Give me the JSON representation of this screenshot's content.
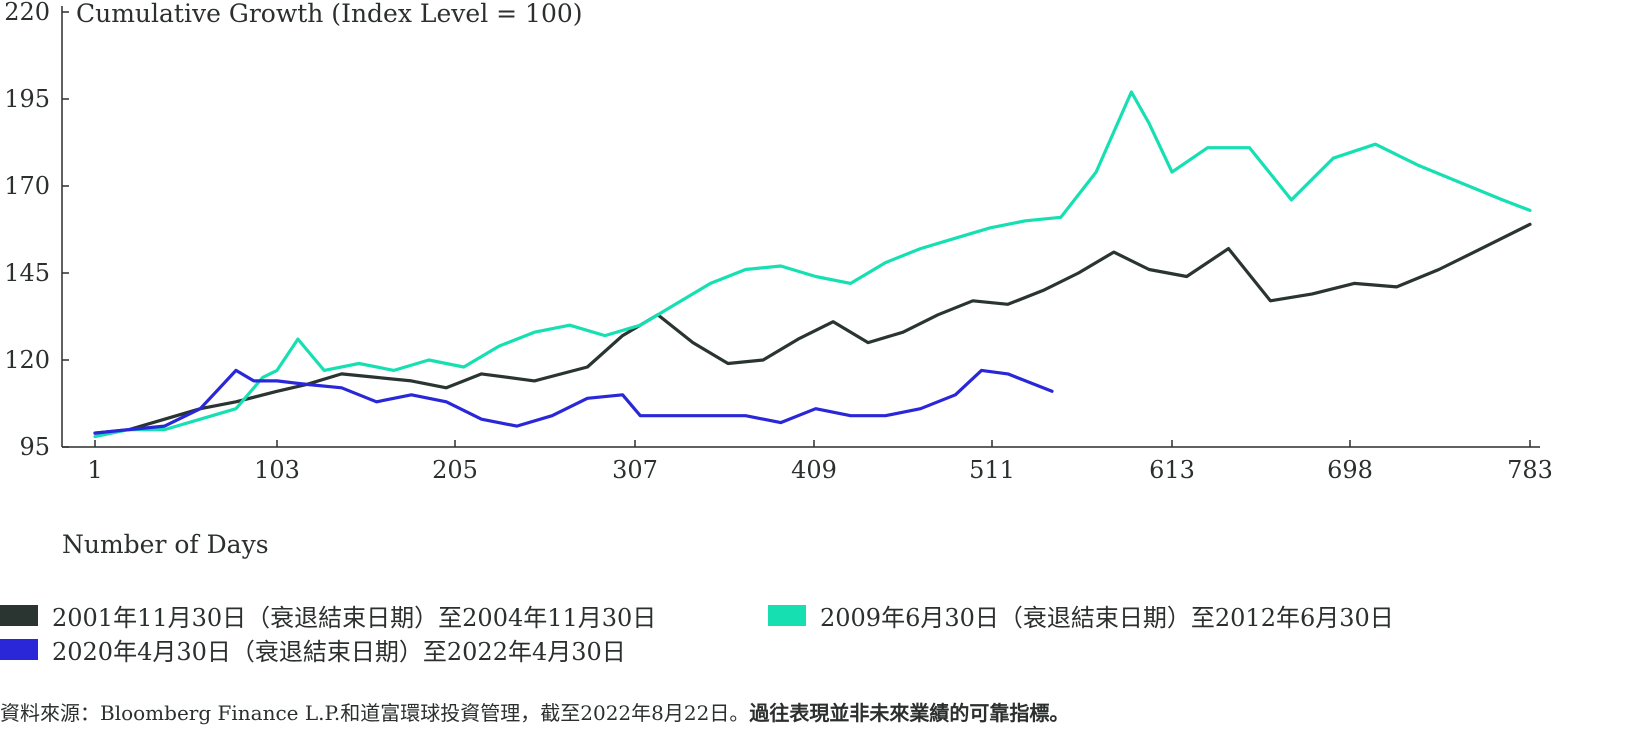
{
  "chart_data": {
    "type": "line",
    "title": "Cumulative Growth (Index Level = 100)",
    "xlabel": "Number of Days",
    "ylabel": "",
    "xlim": [
      1,
      783
    ],
    "ylim": [
      95,
      220
    ],
    "x_ticks": [
      1,
      103,
      205,
      307,
      409,
      511,
      613,
      698,
      783
    ],
    "y_ticks": [
      95,
      120,
      145,
      170,
      195,
      220
    ],
    "grid": false,
    "legend": "bottom",
    "series": [
      {
        "name": "2001年11月30日（衰退結束日期）至2004年11月30日",
        "color": "#2a3431",
        "x": [
          1,
          20,
          40,
          60,
          80,
          103,
          120,
          140,
          160,
          180,
          200,
          220,
          250,
          280,
          300,
          320,
          340,
          360,
          380,
          400,
          420,
          440,
          460,
          480,
          500,
          520,
          540,
          560,
          580,
          600,
          620,
          640,
          660,
          680,
          700,
          720,
          740,
          760,
          783
        ],
        "y": [
          99,
          100,
          103,
          106,
          108,
          111,
          113,
          116,
          115,
          114,
          112,
          116,
          114,
          118,
          127,
          133,
          125,
          119,
          120,
          126,
          131,
          125,
          128,
          133,
          137,
          136,
          140,
          145,
          151,
          146,
          144,
          152,
          137,
          139,
          142,
          141,
          146,
          152,
          159
        ]
      },
      {
        "name": "2009年6月30日（衰退結束日期）至2012年6月30日",
        "color": "#16e0b2",
        "x": [
          1,
          20,
          40,
          60,
          80,
          95,
          103,
          115,
          130,
          150,
          170,
          190,
          210,
          230,
          250,
          270,
          290,
          310,
          330,
          350,
          370,
          390,
          410,
          430,
          450,
          470,
          490,
          510,
          530,
          550,
          570,
          590,
          600,
          613,
          630,
          650,
          670,
          690,
          710,
          730,
          750,
          770,
          783
        ],
        "y": [
          98,
          100,
          100,
          103,
          106,
          115,
          117,
          126,
          117,
          119,
          117,
          120,
          118,
          124,
          128,
          130,
          127,
          130,
          136,
          142,
          146,
          147,
          144,
          142,
          148,
          152,
          155,
          158,
          160,
          161,
          174,
          197,
          188,
          174,
          181,
          181,
          166,
          178,
          182,
          176,
          171,
          166,
          163
        ]
      },
      {
        "name": "2020年4月30日（衰退結束日期）至2022年4月30日",
        "color": "#2a27d8",
        "x": [
          1,
          20,
          40,
          60,
          80,
          90,
          103,
          120,
          140,
          160,
          180,
          200,
          220,
          240,
          260,
          280,
          300,
          310,
          330,
          350,
          370,
          390,
          410,
          430,
          450,
          470,
          490,
          505,
          520,
          545
        ],
        "y": [
          99,
          100,
          101,
          106,
          117,
          114,
          114,
          113,
          112,
          108,
          110,
          108,
          103,
          101,
          104,
          109,
          110,
          104,
          104,
          104,
          104,
          102,
          106,
          104,
          104,
          106,
          110,
          117,
          116,
          111
        ]
      }
    ]
  },
  "footer": {
    "source_prefix": "資料來源：Bloomberg Finance L.P.和道富環球投資管理，截至2022年8月22日。",
    "source_disclaimer": "過往表現並非未來業績的可靠指標。"
  }
}
